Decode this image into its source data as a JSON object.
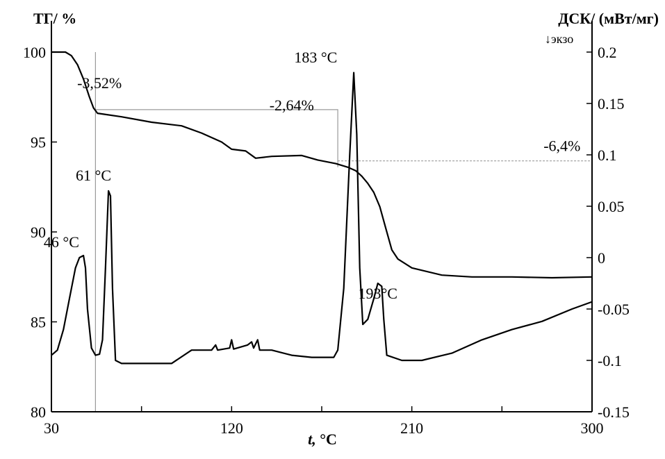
{
  "chart_data": {
    "type": "line",
    "x_axis": {
      "label_var": "t,",
      "label_unit": " °C",
      "range": [
        30,
        300
      ],
      "ticks": [
        30,
        75,
        120,
        165,
        210,
        255,
        300
      ],
      "tick_labels": [
        "30",
        "",
        "120",
        "",
        "210",
        "",
        "300"
      ]
    },
    "y_left": {
      "title": "ТГ/ %",
      "range": [
        80,
        100
      ],
      "ticks": [
        80,
        85,
        90,
        95,
        100
      ],
      "tick_labels": [
        "80",
        "85",
        "90",
        "95",
        "100"
      ]
    },
    "y_right": {
      "title": "ДСК/ (мВт/мг)",
      "exo_label": "↓экзо",
      "range": [
        -0.15,
        0.2
      ],
      "ticks": [
        -0.15,
        -0.1,
        -0.05,
        0,
        0.05,
        0.1,
        0.15,
        0.2
      ],
      "tick_labels": [
        "-0.15",
        "-0.1",
        "-0.05",
        "0",
        "0.05",
        "0.1",
        "0.15",
        "0.2"
      ]
    },
    "series": [
      {
        "axis": "left",
        "points": [
          [
            30,
            100.0
          ],
          [
            37,
            100.0
          ],
          [
            40,
            99.8
          ],
          [
            43,
            99.3
          ],
          [
            46,
            98.5
          ],
          [
            49,
            97.5
          ],
          [
            51,
            96.9
          ],
          [
            53,
            96.6
          ],
          [
            56,
            96.55
          ],
          [
            65,
            96.4
          ],
          [
            80,
            96.1
          ],
          [
            95,
            95.9
          ],
          [
            105,
            95.5
          ],
          [
            115,
            95.0
          ],
          [
            120,
            94.6
          ],
          [
            127,
            94.5
          ],
          [
            132,
            94.1
          ],
          [
            140,
            94.2
          ],
          [
            155,
            94.25
          ],
          [
            163,
            94.0
          ],
          [
            172,
            93.8
          ],
          [
            178,
            93.6
          ],
          [
            182,
            93.4
          ],
          [
            185,
            93.1
          ],
          [
            188,
            92.7
          ],
          [
            191,
            92.2
          ],
          [
            194,
            91.4
          ],
          [
            197,
            90.2
          ],
          [
            200,
            89.0
          ],
          [
            203,
            88.5
          ],
          [
            210,
            88.0
          ],
          [
            225,
            87.6
          ],
          [
            240,
            87.5
          ],
          [
            260,
            87.5
          ],
          [
            280,
            87.45
          ],
          [
            300,
            87.5
          ]
        ]
      },
      {
        "axis": "right",
        "points": [
          [
            30,
            -0.095
          ],
          [
            33,
            -0.09
          ],
          [
            36,
            -0.07
          ],
          [
            39,
            -0.04
          ],
          [
            42,
            -0.01
          ],
          [
            44,
            0.0
          ],
          [
            46,
            0.002
          ],
          [
            47,
            -0.01
          ],
          [
            48,
            -0.05
          ],
          [
            50,
            -0.088
          ],
          [
            52,
            -0.095
          ],
          [
            54,
            -0.094
          ],
          [
            55.5,
            -0.08
          ],
          [
            57,
            -0.01
          ],
          [
            58.5,
            0.065
          ],
          [
            59.5,
            0.06
          ],
          [
            60.5,
            -0.03
          ],
          [
            62,
            -0.1
          ],
          [
            65,
            -0.103
          ],
          [
            90,
            -0.103
          ],
          [
            100,
            -0.09
          ],
          [
            110,
            -0.09
          ],
          [
            112,
            -0.085
          ],
          [
            113,
            -0.09
          ],
          [
            119,
            -0.088
          ],
          [
            120,
            -0.08
          ],
          [
            121,
            -0.089
          ],
          [
            128,
            -0.085
          ],
          [
            130,
            -0.082
          ],
          [
            131,
            -0.088
          ],
          [
            133,
            -0.08
          ],
          [
            134,
            -0.09
          ],
          [
            140,
            -0.09
          ],
          [
            150,
            -0.095
          ],
          [
            160,
            -0.097
          ],
          [
            171,
            -0.097
          ],
          [
            173,
            -0.09
          ],
          [
            176,
            -0.03
          ],
          [
            179,
            0.1
          ],
          [
            181,
            0.18
          ],
          [
            182.5,
            0.12
          ],
          [
            184,
            -0.01
          ],
          [
            185.5,
            -0.065
          ],
          [
            188,
            -0.06
          ],
          [
            191,
            -0.04
          ],
          [
            193,
            -0.025
          ],
          [
            195,
            -0.028
          ],
          [
            196,
            -0.06
          ],
          [
            197.5,
            -0.095
          ],
          [
            205,
            -0.1
          ],
          [
            215,
            -0.1
          ],
          [
            230,
            -0.093
          ],
          [
            245,
            -0.08
          ],
          [
            260,
            -0.07
          ],
          [
            275,
            -0.062
          ],
          [
            290,
            -0.05
          ],
          [
            300,
            -0.043
          ]
        ]
      }
    ],
    "annotations": [
      {
        "text": "-3,52%",
        "x": 54,
        "y": 98.0,
        "axis": "left"
      },
      {
        "text": "-2,64%",
        "x": 150,
        "y": 96.75,
        "axis": "left"
      },
      {
        "text": "-6,4%",
        "x": 285,
        "y": 94.5,
        "axis": "left"
      },
      {
        "text": "183 °C",
        "x": 162,
        "y": 0.19,
        "axis": "right"
      },
      {
        "text": "61 °C",
        "x": 51,
        "y": 0.075,
        "axis": "right"
      },
      {
        "text": "46 °C",
        "x": 35,
        "y": 0.01,
        "axis": "right"
      },
      {
        "text": "193°C",
        "x": 193,
        "y": -0.04,
        "axis": "right"
      }
    ],
    "guides": [
      {
        "style": "solid",
        "points": [
          [
            52,
            100.0
          ],
          [
            52,
            80.0
          ]
        ]
      },
      {
        "style": "solid",
        "points": [
          [
            52,
            96.8
          ],
          [
            173,
            96.8
          ],
          [
            173,
            93.6
          ]
        ]
      },
      {
        "style": "dash",
        "points": [
          [
            173,
            93.95
          ],
          [
            300,
            93.95
          ]
        ]
      }
    ]
  }
}
